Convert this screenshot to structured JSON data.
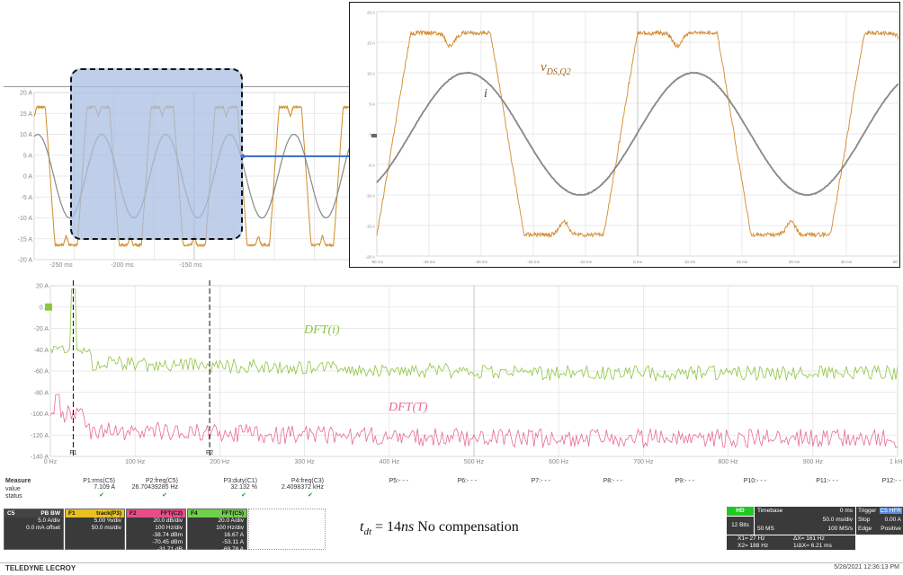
{
  "top_panel": {
    "y_ticks": [
      "20 A",
      "15 A",
      "10 A",
      "5 A",
      "0 A",
      "-5 A",
      "-10 A",
      "-15 A",
      "-20 A"
    ],
    "x_ticks": [
      "-250 ms",
      "-200 ms",
      "-150 ms"
    ]
  },
  "zoom_panel": {
    "y_ticks": [
      "20 A",
      "15 A",
      "10 A",
      "5 A",
      "0 A",
      "-5 A",
      "-10 A",
      "-15 A",
      "-20 A"
    ],
    "x_ticks": [
      "-50 ms",
      "-40 ms",
      "-30 ms",
      "-20 ms",
      "-10 ms",
      "0 ms",
      "10 ms",
      "20 ms",
      "30 ms",
      "40 ms",
      "50 ms"
    ],
    "labels": {
      "vds_base": "v",
      "vds_sub": "DS,Q2",
      "current": "i"
    }
  },
  "fft_panel": {
    "y_ticks": [
      "20 A",
      "0 A",
      "-20 A",
      "-40 A",
      "-60 A",
      "-80 A",
      "-100 A",
      "-120 A",
      "-140 A"
    ],
    "x_ticks": [
      "0 Hz",
      "100 Hz",
      "200 Hz",
      "300 Hz",
      "400 Hz",
      "500 Hz",
      "600 Hz",
      "700 Hz",
      "800 Hz",
      "900 Hz",
      "1 kHz"
    ],
    "cursor_labels": [
      "F1",
      "F2"
    ],
    "labels": {
      "dft_i": "DFT(i)",
      "dft_t": "DFT(T)"
    }
  },
  "measure": {
    "title": "Measure",
    "row_labels": [
      "value",
      "status"
    ],
    "params": [
      {
        "name": "P1:rms(C5)",
        "value": "7.109 A",
        "status": "✔"
      },
      {
        "name": "P2:freq(C5)",
        "value": "26.70439285 Hz",
        "status": "✔"
      },
      {
        "name": "P3:duty(C1)",
        "value": "32.132 %",
        "status": "✔"
      },
      {
        "name": "P4:freq(C3)",
        "value": "2.4098372 kHz",
        "status": "✔"
      },
      {
        "name": "P5:- - -",
        "value": "",
        "status": ""
      },
      {
        "name": "P6:- - -",
        "value": "",
        "status": ""
      },
      {
        "name": "P7:- - -",
        "value": "",
        "status": ""
      },
      {
        "name": "P8:- - -",
        "value": "",
        "status": ""
      },
      {
        "name": "P9:- - -",
        "value": "",
        "status": ""
      },
      {
        "name": "P10:- - -",
        "value": "",
        "status": ""
      },
      {
        "name": "P11:- - -",
        "value": "",
        "status": ""
      },
      {
        "name": "P12:- - -",
        "value": "",
        "status": ""
      }
    ]
  },
  "traces": [
    {
      "head": "C5",
      "badges": "PB BW",
      "rows": [
        "5.0 A/div",
        "0.0 mA offset",
        "",
        ""
      ],
      "color": "#444444"
    },
    {
      "head": "F1",
      "sub": "track(P3)",
      "rows": [
        "5.00 %/div",
        "50.0 ms/div",
        "",
        ""
      ],
      "color": "#e8c020"
    },
    {
      "head": "F2",
      "sub": "FFT(C2)",
      "rows": [
        "20.0 dB/div",
        "100 Hz/div",
        "-38.74 dBm",
        "-70.45 dBm",
        "-31.71 dB"
      ],
      "color": "#e84d8a"
    },
    {
      "head": "F4",
      "sub": "FFT(C5)",
      "rows": [
        "20.0 A/div",
        "100 Hz/div",
        "16.67 A",
        "-53.11 A",
        "-69.78 A"
      ],
      "color": "#6fd04a"
    }
  ],
  "caption": {
    "var": "t",
    "sub": "dt",
    "eq": " = 14",
    "unit": "ns",
    "rest": " No compensation"
  },
  "timebase": {
    "hd": "HD",
    "bits": "12 Bits",
    "tb_label": "Timebase",
    "tb_offset": "0 ms",
    "tb_div": "50.0 ms/div",
    "samples": "50 MS",
    "rate": "100 MS/s",
    "trig_label": "Trigger",
    "trig_badge": "C5 HFR",
    "trig_mode": "Stop",
    "trig_level": "0.00 A",
    "trig_type": "Edge",
    "trig_slope": "Positive",
    "x1": "X1=   27 Hz",
    "dx": "ΔX=   161 Hz",
    "x2": "X2=  188 Hz",
    "inv_dx": "1/ΔX=  6.21 ms"
  },
  "footer": {
    "brand": "TELEDYNE LECROY",
    "datetime": "5/28/2021 12:36:13 PM"
  },
  "colors": {
    "vds": "#d4882c",
    "current": "#888888",
    "fft_i": "#8dc63f",
    "fft_t": "#e86a9a",
    "highlight": "#a9bfe3",
    "arrow": "#4472c4"
  }
}
